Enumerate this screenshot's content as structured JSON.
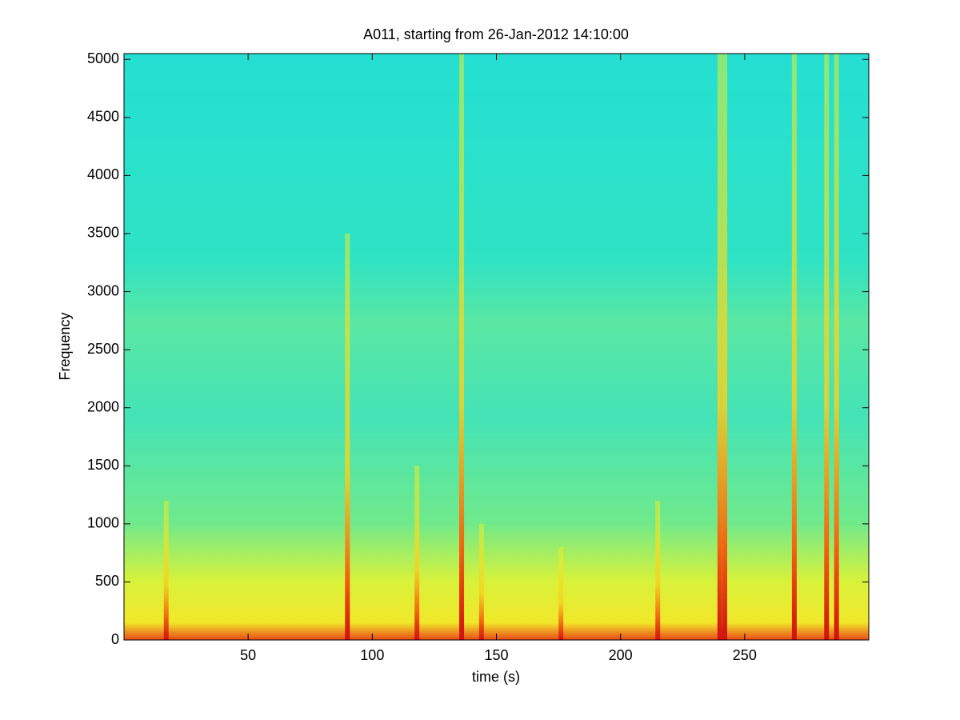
{
  "chart_data": {
    "type": "spectrogram",
    "title": "A011, starting from 26-Jan-2012 14:10:00",
    "xlabel": "time (s)",
    "ylabel": "Frequency",
    "xlim": [
      0,
      300
    ],
    "ylim": [
      0,
      5050
    ],
    "xticks": [
      50,
      100,
      150,
      200,
      250
    ],
    "yticks": [
      0,
      500,
      1000,
      1500,
      2000,
      2500,
      3000,
      3500,
      4000,
      4500,
      5000
    ],
    "bursts": {
      "x": [
        17,
        90,
        118,
        136,
        144,
        176,
        215,
        240,
        242,
        270,
        283,
        287
      ],
      "y": [
        1200,
        3500,
        1500,
        5050,
        1000,
        800,
        1200,
        5050,
        5050,
        5050,
        5050,
        5050
      ]
    }
  }
}
